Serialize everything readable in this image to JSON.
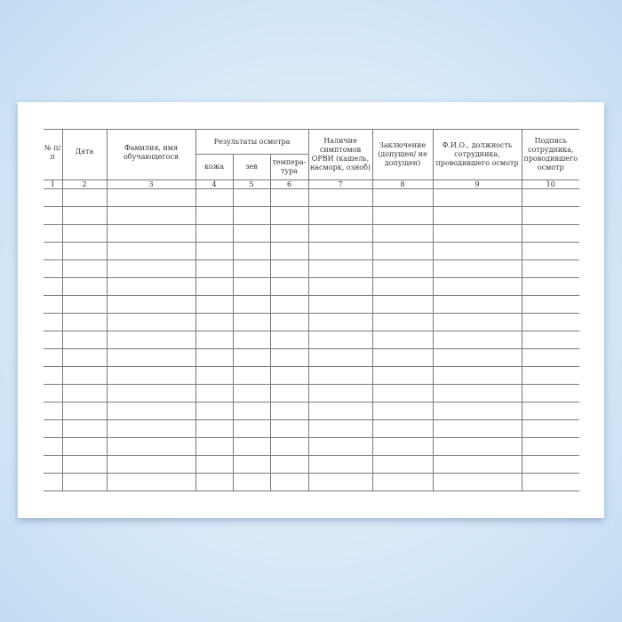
{
  "form": {
    "headers": {
      "num": "№ п/п",
      "date": "Дата",
      "name": "Фамилия, имя обучающегося",
      "results": "Результаты осмотра",
      "skin": "кожа",
      "throat": "зев",
      "temperature": "темпера-тура",
      "symptoms": "Наличие симптомов ОРВИ (кашель, насморк, озноб)",
      "conclusion": "Заключение (допущен/ не допущен)",
      "examiner": "Ф.И.О., должность сотрудника, проводившего осмотр",
      "signature": "Подпись сотрудника, проводившего осмотр"
    },
    "column_numbers": [
      "1",
      "2",
      "3",
      "4",
      "5",
      "6",
      "7",
      "8",
      "9",
      "10"
    ],
    "empty_rows": 17
  }
}
